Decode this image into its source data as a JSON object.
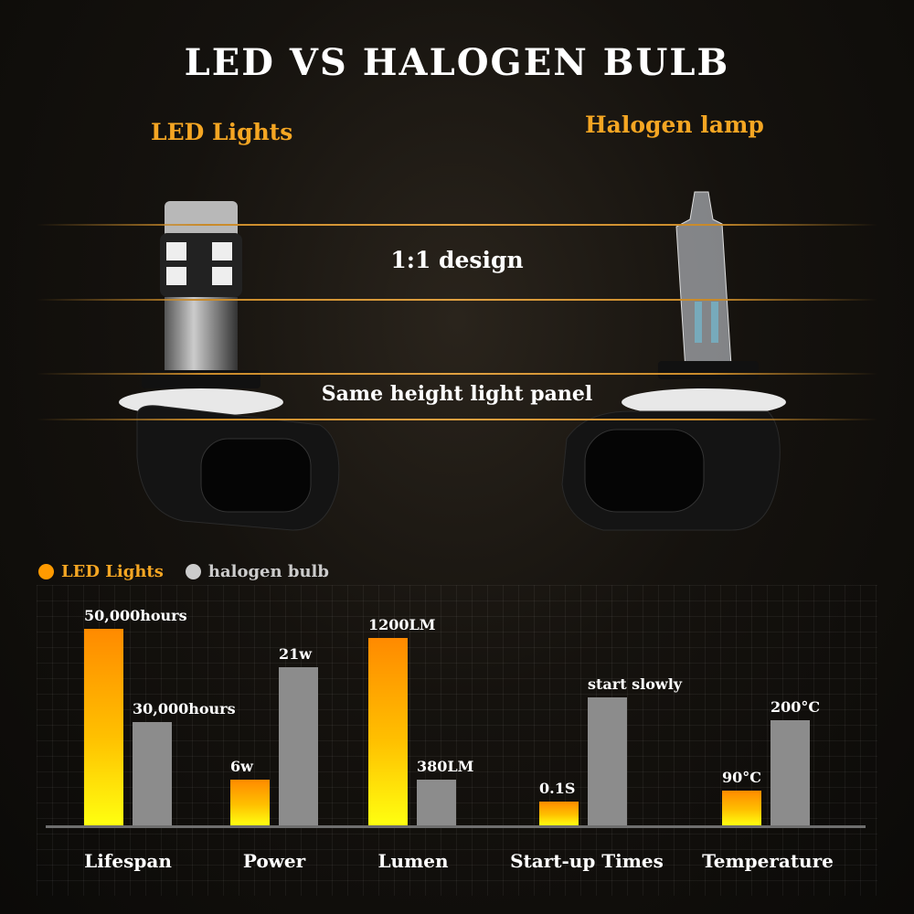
{
  "header": {
    "title": "LED VS HALOGEN BULB",
    "left_label": "LED Lights",
    "right_label": "Halogen lamp",
    "design_caption": "1:1 design",
    "height_caption": "Same height light panel"
  },
  "colors": {
    "led": "#ff9a00",
    "halogen": "#8c8c8c",
    "accent": "#f5a623"
  },
  "chart_data": {
    "type": "bar",
    "legend": {
      "position": "top-left",
      "entries": [
        "LED Lights",
        "halogen bulb"
      ]
    },
    "series": [
      {
        "name": "LED Lights",
        "color": "#ff9a00"
      },
      {
        "name": "halogen bulb",
        "color": "#8c8c8c"
      }
    ],
    "categories": [
      "Lifespan",
      "Power",
      "Lumen",
      "Start-up Times",
      "Temperature"
    ],
    "groups": [
      {
        "category": "Lifespan",
        "led": {
          "label": "50,000hours",
          "level": 100
        },
        "halogen": {
          "label": "30,000hours",
          "level": 52.6
        }
      },
      {
        "category": "Power",
        "led": {
          "label": "6w",
          "level": 23.3
        },
        "halogen": {
          "label": "21w",
          "level": 80.5
        }
      },
      {
        "category": "Lumen",
        "led": {
          "label": "1200LM",
          "level": 95.3
        },
        "halogen": {
          "label": "380LM",
          "level": 23.3
        }
      },
      {
        "category": "Start-up Times",
        "led": {
          "label": "0.1S",
          "level": 12.1
        },
        "halogen": {
          "label": "start slowly",
          "level": 65
        }
      },
      {
        "category": "Temperature",
        "led": {
          "label": "90°C",
          "level": 17.7
        },
        "halogen": {
          "label": "200°C",
          "level": 53.5
        }
      }
    ],
    "grid": true
  }
}
